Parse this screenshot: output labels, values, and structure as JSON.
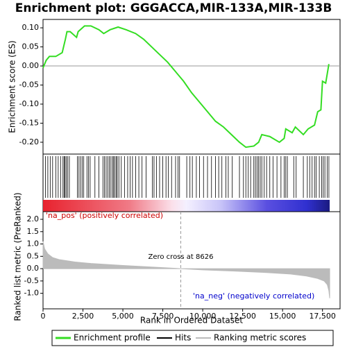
{
  "chart_data": [
    {
      "type": "line",
      "title": "Enrichment plot: GGGACCA,MIR-133A,MIR-133B",
      "ylabel": "Enrichment score (ES)",
      "xlim": [
        0,
        18600
      ],
      "ylim": [
        -0.231,
        0.122
      ],
      "yticks": [
        {
          "value": 0.1,
          "label": "0.10"
        },
        {
          "value": 0.05,
          "label": "0.05"
        },
        {
          "value": 0,
          "label": "0.00"
        },
        {
          "value": -0.05,
          "label": "-0.05"
        },
        {
          "value": -0.1,
          "label": "-0.10"
        },
        {
          "value": -0.15,
          "label": "-0.15"
        },
        {
          "value": -0.2,
          "label": "-0.20"
        }
      ],
      "x": [
        0,
        200,
        400,
        800,
        1200,
        1400,
        1500,
        1700,
        2100,
        2200,
        2600,
        3000,
        3500,
        3800,
        4200,
        4700,
        5200,
        5800,
        6300,
        6800,
        7300,
        7800,
        8300,
        8800,
        9300,
        9800,
        10300,
        10800,
        11300,
        11800,
        12300,
        12700,
        13200,
        13500,
        13700,
        14200,
        14800,
        15100,
        15200,
        15600,
        15800,
        16300,
        16600,
        17000,
        17200,
        17400,
        17500,
        17700,
        17800,
        17900
      ],
      "series": [
        {
          "name": "Enrichment profile",
          "color": "#33dd22",
          "values": [
            -0.005,
            0.015,
            0.025,
            0.025,
            0.035,
            0.07,
            0.09,
            0.09,
            0.075,
            0.09,
            0.105,
            0.105,
            0.095,
            0.085,
            0.095,
            0.102,
            0.095,
            0.085,
            0.07,
            0.05,
            0.03,
            0.01,
            -0.015,
            -0.04,
            -0.07,
            -0.095,
            -0.12,
            -0.145,
            -0.16,
            -0.18,
            -0.2,
            -0.213,
            -0.21,
            -0.2,
            -0.18,
            -0.185,
            -0.2,
            -0.19,
            -0.165,
            -0.175,
            -0.16,
            -0.18,
            -0.165,
            -0.155,
            -0.12,
            -0.115,
            -0.04,
            -0.045,
            -0.02,
            0.005
          ]
        }
      ]
    },
    {
      "type": "hits",
      "xlim": [
        0,
        18600
      ],
      "series": [
        {
          "name": "Hits",
          "color": "#000000"
        }
      ],
      "x": [
        150,
        300,
        450,
        600,
        800,
        950,
        1100,
        1250,
        1320,
        1380,
        1450,
        1550,
        1650,
        2150,
        2250,
        2350,
        2450,
        2550,
        2750,
        2850,
        2950,
        3250,
        3500,
        3750,
        3850,
        3950,
        4050,
        4150,
        4250,
        4350,
        4420,
        4500,
        4580,
        4650,
        4750,
        4900,
        5100,
        5300,
        5450,
        5600,
        5800,
        6000,
        6200,
        6450,
        6850,
        6950,
        7100,
        7300,
        7500,
        7700,
        7850,
        8050,
        8300,
        8450,
        8550,
        9000,
        9200,
        9350,
        9600,
        9800,
        10050,
        10300,
        10550,
        10800,
        11000,
        11200,
        11450,
        11600,
        11850,
        12300,
        12550,
        12700,
        12850,
        13000,
        13200,
        13300,
        13400,
        13500,
        13600,
        13700,
        13850,
        14000,
        14200,
        14400,
        14650,
        14900,
        15100,
        15200,
        15300,
        15700,
        15850,
        16300,
        16550,
        16700,
        16850,
        17000,
        17100,
        17300,
        17450,
        17550,
        17650,
        17800,
        17900
      ]
    },
    {
      "type": "area",
      "ylabel": "Ranked list metric (PreRanked)",
      "xlabel": "Rank in Ordered Dataset",
      "xlim": [
        0,
        18600
      ],
      "ylim": [
        -1.63,
        2.31
      ],
      "xticks": [
        0,
        {
          "value": 2500,
          "label": "2,500"
        },
        {
          "value": 5000,
          "label": "5,000"
        },
        {
          "value": 7500,
          "label": "7,500"
        },
        {
          "value": 10000,
          "label": "10,000"
        },
        {
          "value": 12500,
          "label": "12,500"
        },
        {
          "value": 15000,
          "label": "15,000"
        },
        {
          "value": 17500,
          "label": "17,500"
        }
      ],
      "yticks": [
        {
          "value": 2,
          "label": "2.0"
        },
        {
          "value": 1.5,
          "label": "1.5"
        },
        {
          "value": 1,
          "label": "1.0"
        },
        {
          "value": 0.5,
          "label": "0.5"
        },
        {
          "value": 0,
          "label": "0.0"
        },
        {
          "value": -0.5,
          "label": "-0.5"
        },
        {
          "value": -1,
          "label": "-1.0"
        }
      ],
      "zero_cross": 8626,
      "zero_cross_label": "Zero cross at 8626",
      "pos_label": "'na_pos' (positively correlated)",
      "neg_label": "'na_neg' (negatively correlated)",
      "x": [
        0,
        100,
        300,
        600,
        1000,
        2000,
        3000,
        5000,
        7000,
        8626,
        10000,
        12000,
        14000,
        15500,
        16500,
        17200,
        17600,
        17800,
        17900,
        17950
      ],
      "series": [
        {
          "name": "Ranking metric scores",
          "color": "#bbbbbb",
          "values": [
            1.1,
            0.8,
            0.6,
            0.45,
            0.37,
            0.27,
            0.21,
            0.13,
            0.06,
            0,
            -0.05,
            -0.1,
            -0.16,
            -0.22,
            -0.3,
            -0.4,
            -0.5,
            -0.65,
            -0.9,
            -1.2
          ]
        }
      ]
    }
  ]
}
